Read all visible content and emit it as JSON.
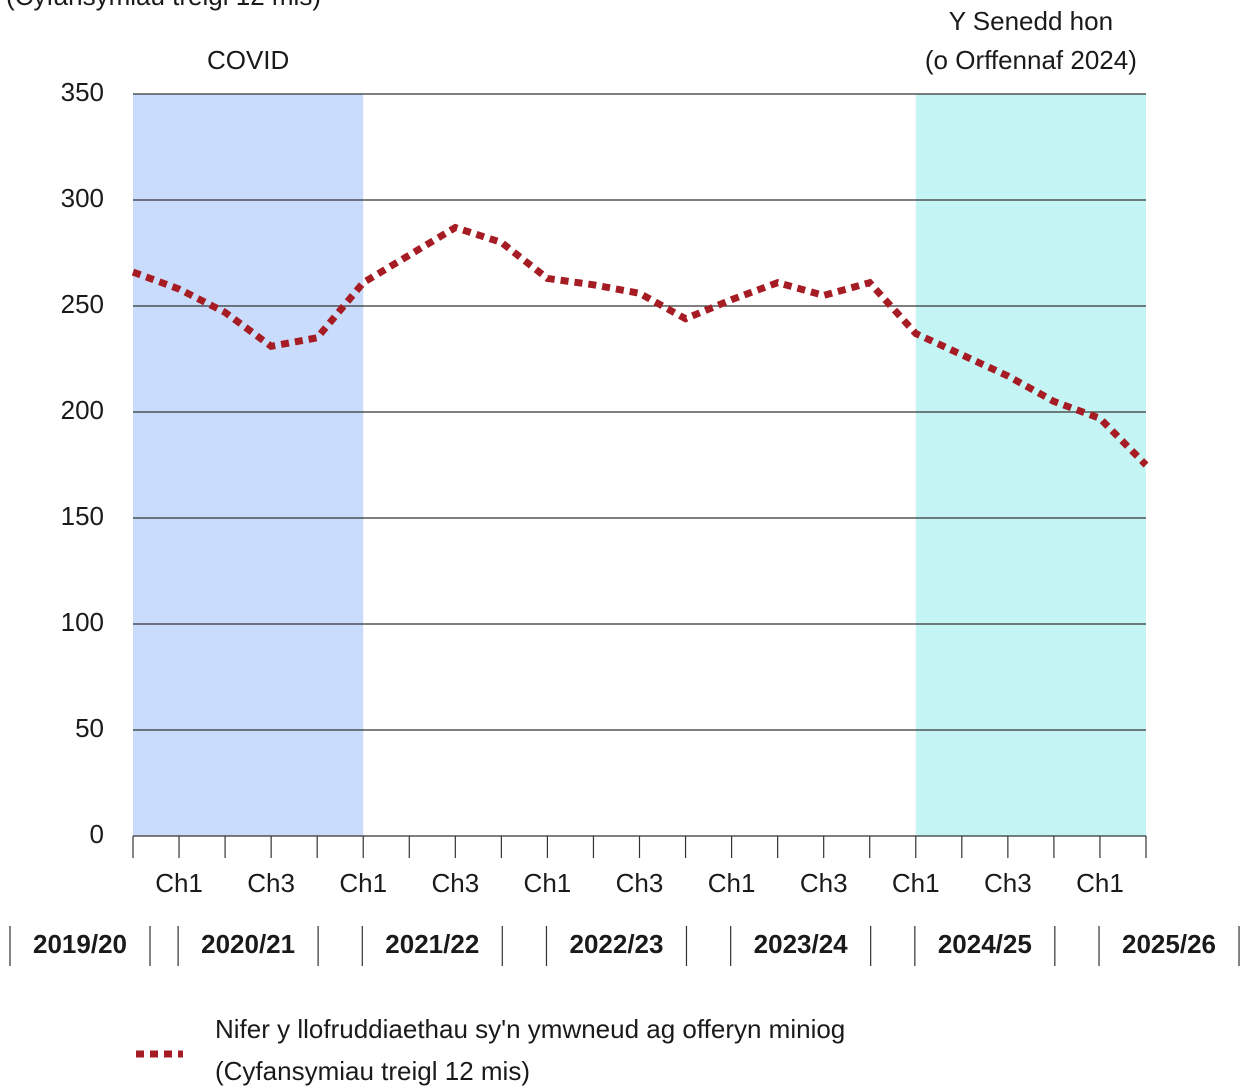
{
  "chart_data": {
    "type": "line",
    "subtitle": "(Cyfansymiau treigl 12 mis)",
    "categories": [
      null,
      "Ch1",
      null,
      "Ch3",
      null,
      "Ch1",
      null,
      "Ch3",
      null,
      "Ch1",
      null,
      "Ch3",
      null,
      "Ch1",
      null,
      "Ch3",
      null,
      "Ch1",
      null,
      "Ch3",
      null,
      "Ch1",
      null
    ],
    "year_groups": [
      "2019/20",
      "2020/21",
      "2021/22",
      "2022/23",
      "2023/24",
      "2024/25",
      "2025/26"
    ],
    "series": [
      {
        "name": "Nifer y llofruddiaethau sy'n ymwneud ag offeryn miniog",
        "note": "(Cyfansymiau treigl 12 mis)",
        "color": "#a51c24",
        "values": [
          266,
          258,
          247,
          231,
          235,
          261,
          274,
          287,
          280,
          263,
          260,
          256,
          244,
          253,
          261,
          255,
          261,
          237,
          227,
          217,
          205,
          197,
          175
        ]
      }
    ],
    "bands": [
      {
        "lines": [
          "COVID"
        ],
        "from": 0,
        "to": 5,
        "color": "#c9dcfb"
      },
      {
        "lines": [
          "Y Senedd hon",
          "(o Orffennaf 2024)"
        ],
        "from": 17,
        "to": 22,
        "color": "#c5f4f4"
      }
    ],
    "ylim": [
      0,
      350
    ],
    "yticks": [
      0,
      50,
      100,
      150,
      200,
      250,
      300,
      350
    ],
    "grid": true
  }
}
